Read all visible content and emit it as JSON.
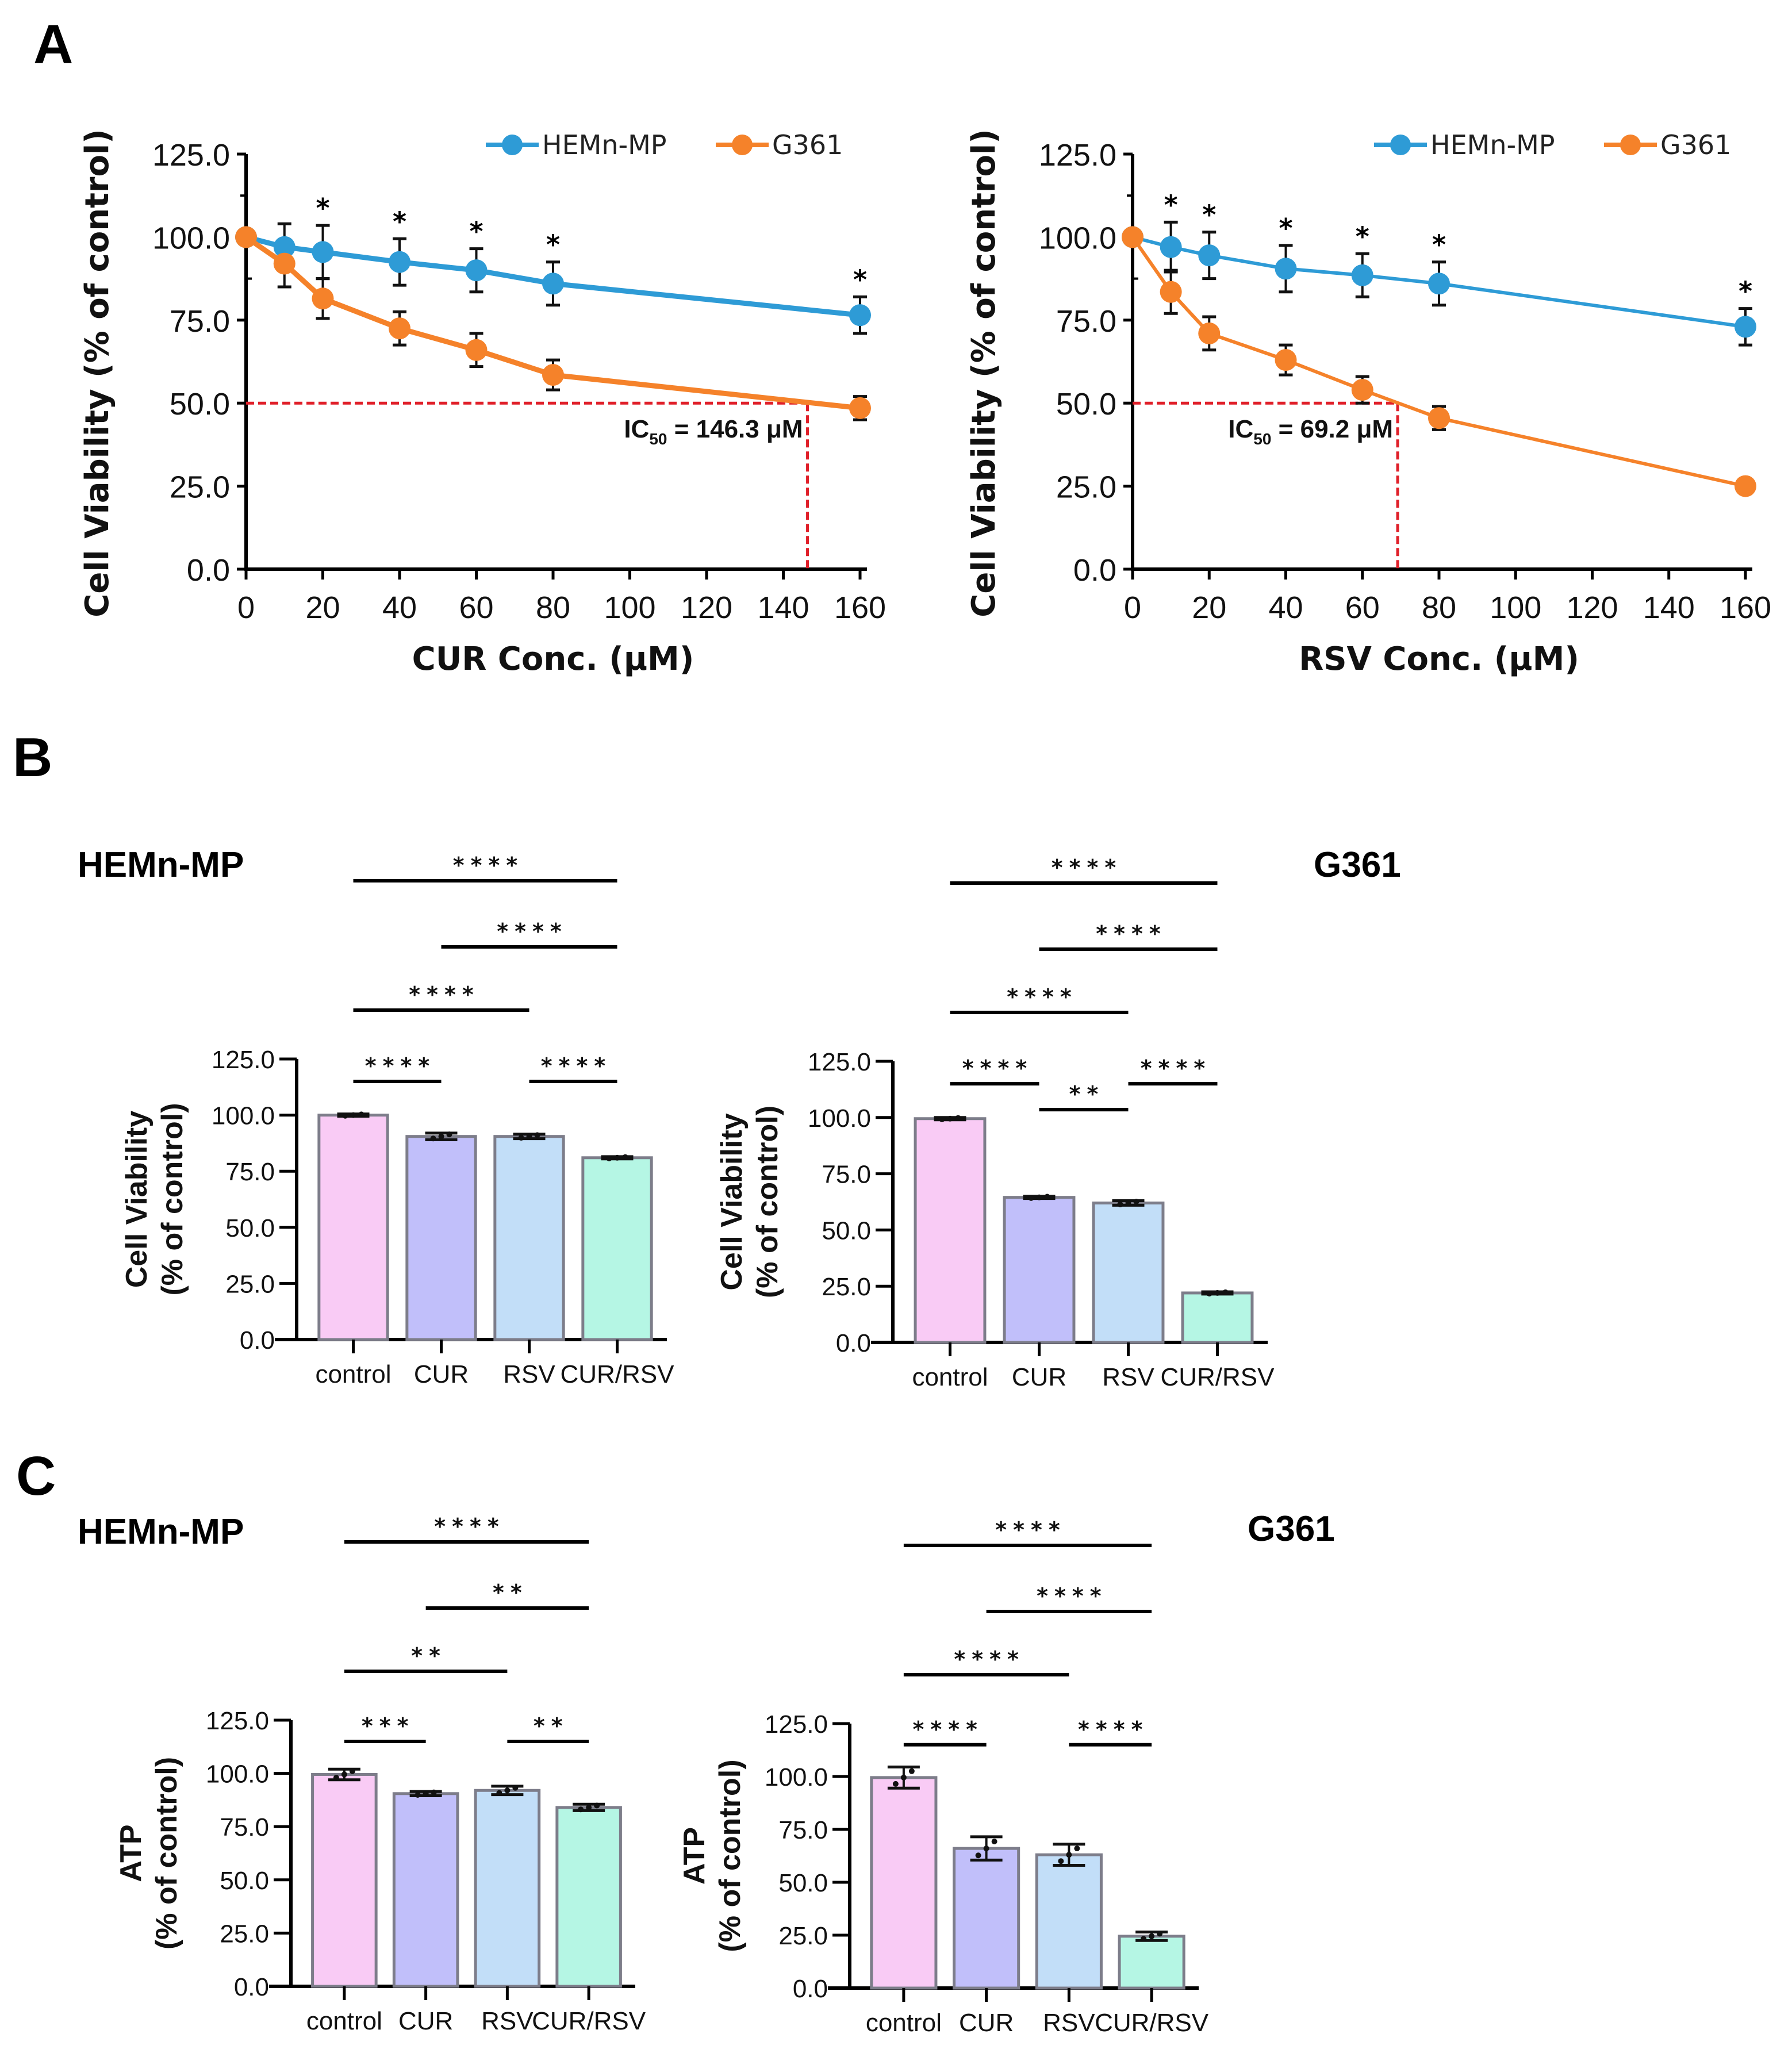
{
  "panels": {
    "A": {
      "letter": "A"
    },
    "B": {
      "letter": "B"
    },
    "C": {
      "letter": "C"
    }
  },
  "chart_data": [
    {
      "id": "A-CUR",
      "panel": "A",
      "type": "line",
      "title": "",
      "xlabel": "CUR Conc. (μM)",
      "ylabel": "Cell Viability (% of control)",
      "xlim": [
        0,
        160
      ],
      "ylim": [
        0,
        125
      ],
      "xticks": [
        0,
        20,
        40,
        60,
        80,
        100,
        120,
        140,
        160
      ],
      "yticks": [
        "0.0",
        "25.0",
        "50.0",
        "75.0",
        "100.0",
        "125.0"
      ],
      "legend": {
        "placement": "top-right",
        "entries": [
          "HEMn-MP",
          "G361"
        ]
      },
      "x": [
        0,
        10,
        20,
        40,
        60,
        80,
        160
      ],
      "series": [
        {
          "name": "HEMn-MP",
          "color": "#2e9bd6",
          "values": [
            100,
            97,
            95.5,
            92.5,
            90,
            86,
            76.5
          ],
          "err": [
            0,
            7,
            8,
            7,
            6.5,
            6.5,
            5.5
          ]
        },
        {
          "name": "G361",
          "color": "#f5822a",
          "values": [
            100,
            92,
            81.5,
            72.5,
            66,
            58.5,
            48.5
          ],
          "err": [
            0,
            7,
            6,
            5,
            5,
            4.5,
            3.5
          ]
        }
      ],
      "significance": {
        "marker": "*",
        "x": [
          20,
          40,
          60,
          80,
          160
        ]
      },
      "annotation": {
        "label": "IC",
        "subscript": "50",
        "text": " = 146.3 μM",
        "x": 146.3,
        "y": 50,
        "color": "#e0202a"
      }
    },
    {
      "id": "A-RSV",
      "panel": "A",
      "type": "line",
      "title": "",
      "xlabel": "RSV Conc. (μM)",
      "ylabel": "Cell Viability (% of control)",
      "xlim": [
        0,
        160
      ],
      "ylim": [
        0,
        125
      ],
      "xticks": [
        0,
        20,
        40,
        60,
        80,
        100,
        120,
        140,
        160
      ],
      "yticks": [
        "0.0",
        "25.0",
        "50.0",
        "75.0",
        "100.0",
        "125.0"
      ],
      "legend": {
        "placement": "top-right",
        "entries": [
          "HEMn-MP",
          "G361"
        ]
      },
      "x": [
        0,
        10,
        20,
        40,
        60,
        80,
        160
      ],
      "series": [
        {
          "name": "HEMn-MP",
          "color": "#2e9bd6",
          "values": [
            100,
            97,
            94.5,
            90.5,
            88.5,
            86,
            73
          ],
          "err": [
            0,
            7.5,
            7,
            7,
            6.5,
            6.5,
            5.5
          ]
        },
        {
          "name": "G361",
          "color": "#f5822a",
          "values": [
            100,
            83.5,
            71,
            63,
            54,
            45.5,
            25
          ],
          "err": [
            0,
            6.5,
            5,
            4.5,
            4,
            3.5,
            0
          ]
        }
      ],
      "significance": {
        "marker": "*",
        "x": [
          10,
          20,
          40,
          60,
          80,
          160
        ]
      },
      "annotation": {
        "label": "IC",
        "subscript": "50",
        "text": " = 69.2 μM",
        "x": 69.2,
        "y": 50,
        "color": "#e0202a"
      }
    },
    {
      "id": "B-HEMn",
      "panel": "B",
      "type": "bar",
      "title": "HEMn-MP",
      "xlabel": "",
      "ylabel": [
        "Cell Viability",
        "(% of control)"
      ],
      "ylim": [
        0,
        125
      ],
      "yticks": [
        "0.0",
        "25.0",
        "50.0",
        "75.0",
        "100.0",
        "125.0"
      ],
      "categories": [
        "control",
        "CUR",
        "RSV",
        "CUR/RSV"
      ],
      "colors": [
        "#f9cbf5",
        "#c1bffa",
        "#c2def8",
        "#b5f6e4"
      ],
      "values": [
        100,
        90.5,
        90.5,
        81
      ],
      "err": [
        0.5,
        1.5,
        1,
        0.5
      ],
      "comparisons": [
        {
          "from": 0,
          "to": 1,
          "label": "****"
        },
        {
          "from": 2,
          "to": 3,
          "label": "****"
        },
        {
          "from": 0,
          "to": 2,
          "label": "****"
        },
        {
          "from": 1,
          "to": 3,
          "label": "****"
        },
        {
          "from": 0,
          "to": 3,
          "label": "****"
        }
      ]
    },
    {
      "id": "B-G361",
      "panel": "B",
      "type": "bar",
      "title": "G361",
      "xlabel": "",
      "ylabel": [
        "Cell Viability",
        "(% of control)"
      ],
      "ylim": [
        0,
        125
      ],
      "yticks": [
        "0.0",
        "25.0",
        "50.0",
        "75.0",
        "100.0",
        "125.0"
      ],
      "categories": [
        "control",
        "CUR",
        "RSV",
        "CUR/RSV"
      ],
      "colors": [
        "#f9cbf5",
        "#c1bffa",
        "#c2def8",
        "#b5f6e4"
      ],
      "values": [
        99.5,
        64.5,
        62,
        22
      ],
      "err": [
        0.5,
        0.5,
        1,
        0.5
      ],
      "comparisons": [
        {
          "from": 0,
          "to": 1,
          "label": "****"
        },
        {
          "from": 1,
          "to": 2,
          "label": "**"
        },
        {
          "from": 2,
          "to": 3,
          "label": "****"
        },
        {
          "from": 0,
          "to": 2,
          "label": "****"
        },
        {
          "from": 1,
          "to": 3,
          "label": "****"
        },
        {
          "from": 0,
          "to": 3,
          "label": "****"
        }
      ]
    },
    {
      "id": "C-HEMn",
      "panel": "C",
      "type": "bar",
      "title": "HEMn-MP",
      "xlabel": "",
      "ylabel": [
        "ATP",
        "(% of control)"
      ],
      "ylim": [
        0,
        125
      ],
      "yticks": [
        "0.0",
        "25.0",
        "50.0",
        "75.0",
        "100.0",
        "125.0"
      ],
      "categories": [
        "control",
        "CUR",
        "RSV",
        "CUR/RSV"
      ],
      "colors": [
        "#f9cbf5",
        "#c1bffa",
        "#c2def8",
        "#b5f6e4"
      ],
      "values": [
        99.5,
        90.5,
        92,
        84
      ],
      "err": [
        2.5,
        1,
        2,
        1.5
      ],
      "comparisons": [
        {
          "from": 0,
          "to": 1,
          "label": "***"
        },
        {
          "from": 2,
          "to": 3,
          "label": "**"
        },
        {
          "from": 0,
          "to": 2,
          "label": "**"
        },
        {
          "from": 1,
          "to": 3,
          "label": "**"
        },
        {
          "from": 0,
          "to": 3,
          "label": "****"
        }
      ]
    },
    {
      "id": "C-G361",
      "panel": "C",
      "type": "bar",
      "title": "G361",
      "xlabel": "",
      "ylabel": [
        "ATP",
        "(% of control)"
      ],
      "ylim": [
        0,
        125
      ],
      "yticks": [
        "0.0",
        "25.0",
        "50.0",
        "75.0",
        "100.0",
        "125.0"
      ],
      "categories": [
        "control",
        "CUR",
        "RSV",
        "CUR/RSV"
      ],
      "colors": [
        "#f9cbf5",
        "#c1bffa",
        "#c2def8",
        "#b5f6e4"
      ],
      "values": [
        99.5,
        66,
        63,
        24.5
      ],
      "err": [
        5,
        5.5,
        5,
        2
      ],
      "comparisons": [
        {
          "from": 0,
          "to": 1,
          "label": "****"
        },
        {
          "from": 2,
          "to": 3,
          "label": "****"
        },
        {
          "from": 0,
          "to": 2,
          "label": "****"
        },
        {
          "from": 1,
          "to": 3,
          "label": "****"
        },
        {
          "from": 0,
          "to": 3,
          "label": "****"
        }
      ]
    }
  ]
}
